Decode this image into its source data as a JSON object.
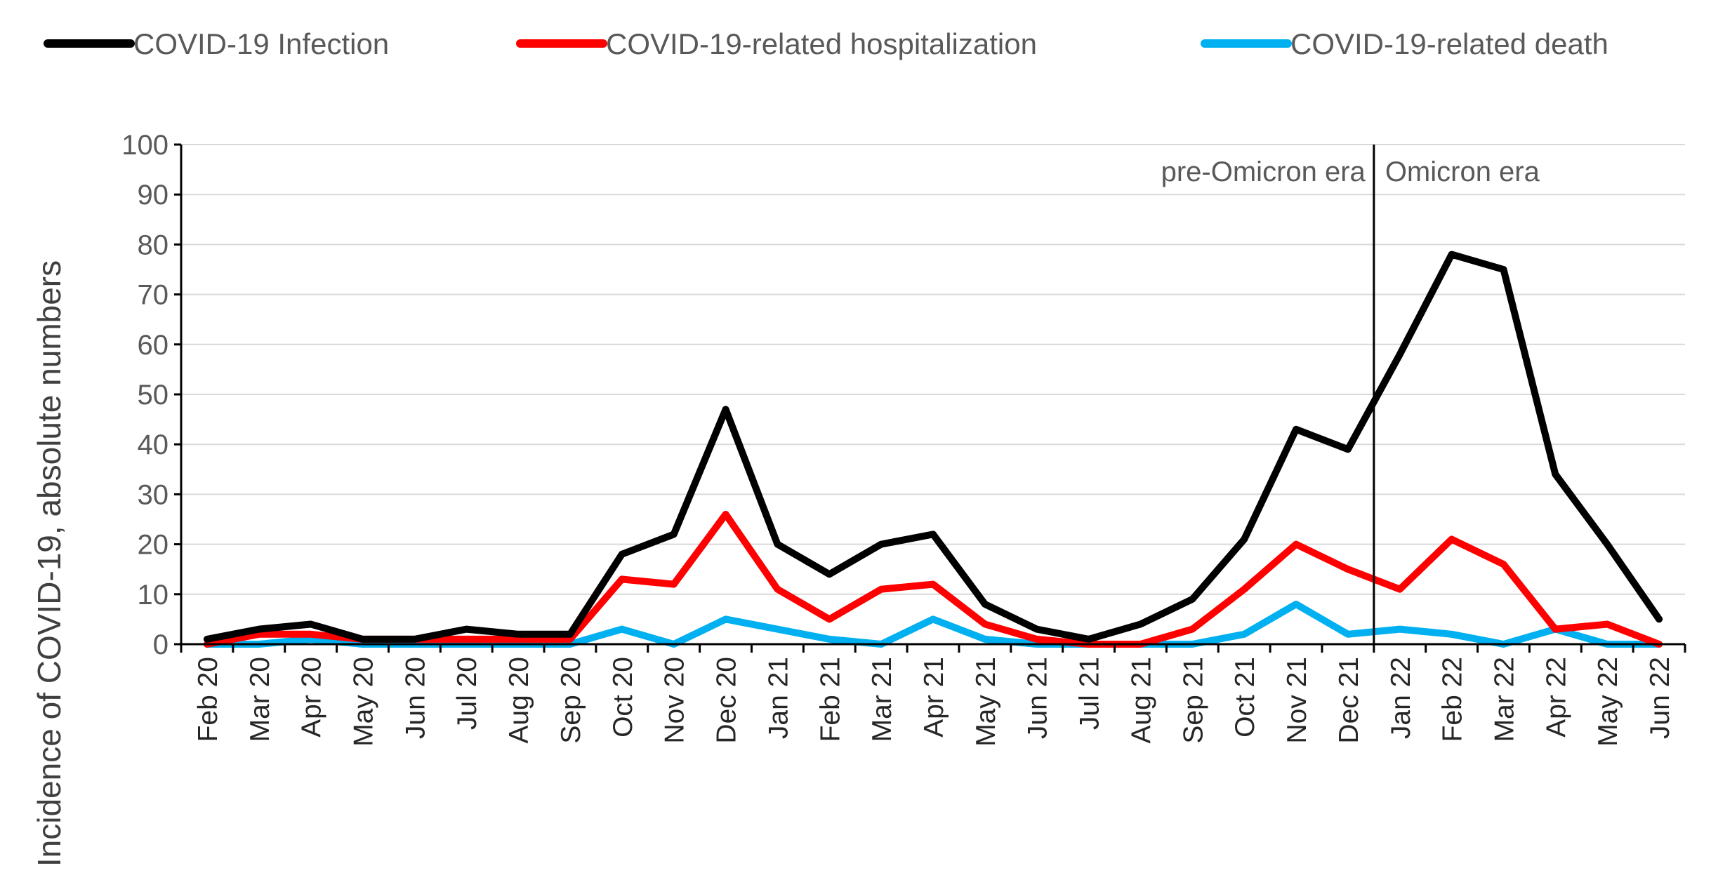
{
  "chart_data": {
    "type": "line",
    "title": "",
    "xlabel": "",
    "ylabel": "Incidence of COVID-19, absolute numbers",
    "ylim": [
      0,
      100
    ],
    "yticks": [
      0,
      10,
      20,
      30,
      40,
      50,
      60,
      70,
      80,
      90,
      100
    ],
    "grid": true,
    "legend_position": "top",
    "categories": [
      "Feb 20",
      "Mar 20",
      "Apr 20",
      "May 20",
      "Jun 20",
      "Jul 20",
      "Aug 20",
      "Sep 20",
      "Oct 20",
      "Nov 20",
      "Dec 20",
      "Jan 21",
      "Feb 21",
      "Mar 21",
      "Apr 21",
      "May 21",
      "Jun 21",
      "Jul 21",
      "Aug 21",
      "Sep 21",
      "Oct 21",
      "Nov 21",
      "Dec 21",
      "Jan 22",
      "Feb 22",
      "Mar 22",
      "Apr 22",
      "May 22",
      "Jun 22"
    ],
    "series": [
      {
        "name": "COVID-19 Infection",
        "color": "#000000",
        "values": [
          1,
          3,
          4,
          1,
          1,
          3,
          2,
          2,
          18,
          22,
          47,
          20,
          14,
          20,
          22,
          8,
          3,
          1,
          4,
          9,
          21,
          43,
          39,
          58,
          78,
          75,
          34,
          20,
          5
        ]
      },
      {
        "name": "COVID-19-related hospitalization",
        "color": "#ff0000",
        "values": [
          0,
          2,
          2,
          1,
          1,
          1,
          1,
          1,
          13,
          12,
          26,
          11,
          5,
          11,
          12,
          4,
          1,
          0,
          0,
          3,
          11,
          20,
          15,
          11,
          21,
          16,
          3,
          4,
          0
        ]
      },
      {
        "name": "COVID-19-related death",
        "color": "#00b0f0",
        "values": [
          0,
          0,
          1,
          0,
          0,
          0,
          0,
          0,
          3,
          0,
          5,
          3,
          1,
          0,
          5,
          1,
          0,
          0,
          0,
          0,
          2,
          8,
          2,
          3,
          2,
          0,
          3,
          0,
          0
        ]
      }
    ],
    "annotations": {
      "divider_between": [
        "Dec 21",
        "Jan 22"
      ],
      "left_label": "pre-Omicron era",
      "right_label": "Omicron era"
    }
  }
}
